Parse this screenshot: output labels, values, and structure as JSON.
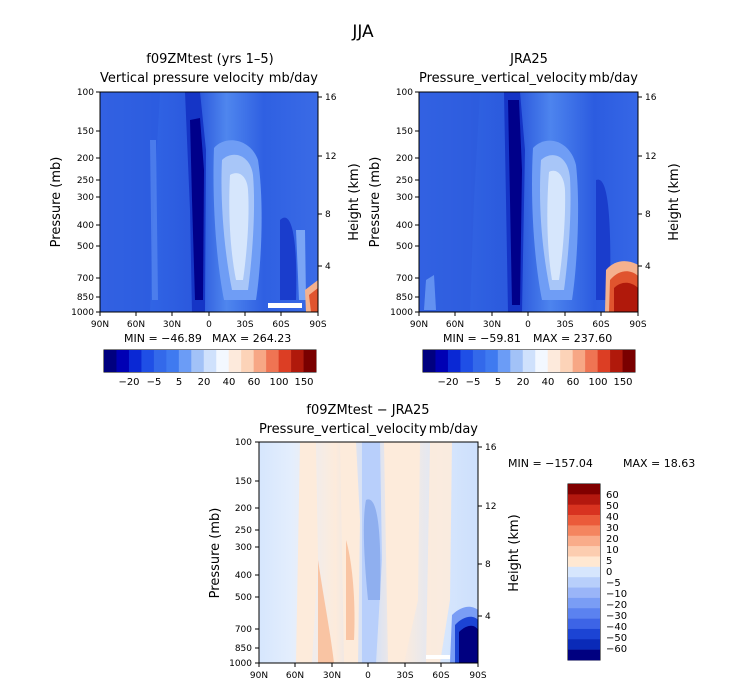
{
  "figure": {
    "title": "JJA"
  },
  "colors": {
    "diff_neg": [
      "#000080",
      "#0a2ab8",
      "#1c44d4",
      "#3d64e6",
      "#5b82f0",
      "#7a9df5",
      "#9ab5f8",
      "#b8cffb",
      "#d6e6fd"
    ],
    "diff_pos": [
      "#ffe8d2",
      "#fccdb0",
      "#f9ac8a",
      "#f4855f",
      "#eb5b3a",
      "#d83320",
      "#b3180f",
      "#800000"
    ],
    "field_colors": [
      "#00007f",
      "#0000b4",
      "#0a28d4",
      "#1f4fe6",
      "#3369ea",
      "#3f7af0",
      "#6b9cf6",
      "#a2c2f7",
      "#cfe1fc",
      "#f3f8ff",
      "#fdeadc",
      "#fcd3b8",
      "#f7a785",
      "#ef7453",
      "#dc3e24",
      "#b0190b",
      "#7a0000"
    ]
  },
  "chart_data": [
    {
      "type": "heatmap",
      "title": "f09ZMtest (yrs 1–5)",
      "left_label": "Vertical pressure velocity",
      "right_label": "mb/day",
      "ylabel": "Pressure (mb)",
      "ylabel_right": "Height (km)",
      "x_ticks": [
        "90N",
        "60N",
        "30N",
        "0",
        "30S",
        "60S",
        "90S"
      ],
      "y_ticks": [
        "100",
        "150",
        "200",
        "250",
        "300",
        "400",
        "500",
        "700",
        "850",
        "1000"
      ],
      "y_right_ticks": [
        "16",
        "12",
        "8",
        "4"
      ],
      "ylim": [
        1000,
        100
      ],
      "y_scale": "log",
      "min_label": "MIN = −46.89",
      "max_label": "MAX = 264.23",
      "colorbar_labels": [
        "−20",
        "−5",
        "5",
        "20",
        "40",
        "60",
        "100",
        "150"
      ],
      "features": [
        {
          "lat": -8,
          "p_low": 120,
          "p_high": 1000,
          "value": -20
        },
        {
          "lat": 15,
          "p_low": 160,
          "p_high": 850,
          "value": 20
        },
        {
          "lat": 75,
          "p_low": 650,
          "p_high": 1000,
          "value": 150
        }
      ]
    },
    {
      "type": "heatmap",
      "title": "JRA25",
      "left_label": "Pressure_vertical_velocity",
      "right_label": "mb/day",
      "ylabel": "Pressure (mb)",
      "ylabel_right": "Height (km)",
      "x_ticks": [
        "90N",
        "60N",
        "30N",
        "0",
        "30S",
        "60S",
        "90S"
      ],
      "y_ticks": [
        "100",
        "150",
        "200",
        "250",
        "300",
        "400",
        "500",
        "700",
        "850",
        "1000"
      ],
      "y_right_ticks": [
        "16",
        "12",
        "8",
        "4"
      ],
      "ylim": [
        1000,
        100
      ],
      "y_scale": "log",
      "min_label": "MIN = −59.81",
      "max_label": "MAX = 237.60",
      "colorbar_labels": [
        "−20",
        "−5",
        "5",
        "20",
        "40",
        "60",
        "100",
        "150"
      ],
      "features": [
        {
          "lat": -8,
          "p_low": 140,
          "p_high": 1000,
          "value": -20
        },
        {
          "lat": 15,
          "p_low": 160,
          "p_high": 850,
          "value": 20
        },
        {
          "lat": 75,
          "p_low": 650,
          "p_high": 1000,
          "value": 237
        }
      ]
    },
    {
      "type": "heatmap",
      "title": "f09ZMtest − JRA25",
      "left_label": "Pressure_vertical_velocity",
      "right_label": "mb/day",
      "ylabel": "Pressure (mb)",
      "ylabel_right": "Height (km)",
      "x_ticks": [
        "90N",
        "60N",
        "30N",
        "0",
        "30S",
        "60S",
        "90S"
      ],
      "y_ticks": [
        "100",
        "150",
        "200",
        "250",
        "300",
        "400",
        "500",
        "700",
        "850",
        "1000"
      ],
      "y_right_ticks": [
        "16",
        "12",
        "8",
        "4"
      ],
      "ylim": [
        1000,
        100
      ],
      "y_scale": "log",
      "min_label": "MIN = −157.04",
      "max_label": "MAX =   18.63",
      "colorbar_labels": [
        "60",
        "50",
        "40",
        "30",
        "20",
        "10",
        "5",
        "0",
        "−5",
        "−10",
        "−20",
        "−30",
        "−40",
        "−50",
        "−60"
      ],
      "features": [
        {
          "lat": 0,
          "p_low": 250,
          "p_high": 900,
          "value": -20
        },
        {
          "lat": 20,
          "p_low": 200,
          "p_high": 900,
          "value": 5
        },
        {
          "lat": 78,
          "p_low": 680,
          "p_high": 1000,
          "value": -60
        }
      ]
    }
  ]
}
